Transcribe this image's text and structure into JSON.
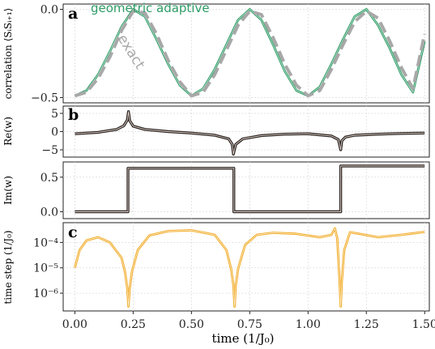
{
  "colors": {
    "green": "#2e9c66",
    "exact": "#a8a8a8",
    "w_line": "#2a2522",
    "orange": "#f2ae2e",
    "grid": "#dcdcdc",
    "axis": "#222222"
  },
  "chart_data": [
    {
      "type": "line",
      "panel_label": "a",
      "ylabel": "correlation ⟨SᵢSᵢ₊₁⟩",
      "ylim": [
        -0.53,
        0.03
      ],
      "yticks": [
        0.0,
        -0.5
      ],
      "ytick_labels": [
        "0.0",
        "−0.5"
      ],
      "xlim": [
        -0.05,
        1.52
      ],
      "grid": true,
      "annotations": [
        {
          "text": "geometric adaptive",
          "color": "#2e9c66"
        },
        {
          "text": "exact",
          "color": "#a8a8a8"
        }
      ],
      "series": [
        {
          "name": "geometric adaptive",
          "style": "solid",
          "color": "#2e9c66",
          "x": [
            0.0,
            0.05,
            0.1,
            0.15,
            0.2,
            0.25,
            0.3,
            0.35,
            0.4,
            0.45,
            0.5,
            0.55,
            0.6,
            0.65,
            0.7,
            0.75,
            0.8,
            0.85,
            0.9,
            0.95,
            1.0,
            1.05,
            1.1,
            1.15,
            1.2,
            1.25,
            1.3,
            1.35,
            1.4,
            1.45,
            1.5
          ],
          "y": [
            -0.49,
            -0.46,
            -0.37,
            -0.24,
            -0.1,
            0.0,
            -0.04,
            -0.17,
            -0.31,
            -0.43,
            -0.49,
            -0.45,
            -0.34,
            -0.2,
            -0.06,
            0.0,
            -0.06,
            -0.2,
            -0.35,
            -0.46,
            -0.49,
            -0.44,
            -0.31,
            -0.17,
            -0.04,
            0.0,
            -0.09,
            -0.22,
            -0.37,
            -0.47,
            -0.18
          ]
        },
        {
          "name": "exact",
          "style": "dashed",
          "color": "#a8a8a8",
          "x": [
            0.0,
            0.05,
            0.1,
            0.15,
            0.2,
            0.25,
            0.3,
            0.35,
            0.4,
            0.45,
            0.5,
            0.55,
            0.6,
            0.65,
            0.7,
            0.75,
            0.8,
            0.85,
            0.9,
            0.95,
            1.0,
            1.05,
            1.1,
            1.15,
            1.2,
            1.25,
            1.3,
            1.35,
            1.4,
            1.45,
            1.5
          ],
          "y": [
            -0.49,
            -0.47,
            -0.39,
            -0.27,
            -0.12,
            -0.01,
            -0.02,
            -0.14,
            -0.29,
            -0.41,
            -0.49,
            -0.47,
            -0.37,
            -0.23,
            -0.09,
            -0.01,
            -0.03,
            -0.16,
            -0.31,
            -0.43,
            -0.49,
            -0.46,
            -0.34,
            -0.2,
            -0.07,
            -0.01,
            -0.05,
            -0.18,
            -0.33,
            -0.45,
            -0.14
          ]
        }
      ]
    },
    {
      "type": "line",
      "panel_label": "b",
      "ylabel": "Re(w)",
      "ylim": [
        -7,
        7
      ],
      "yticks": [
        5,
        0,
        -5
      ],
      "ytick_labels": [
        "5",
        "0",
        "−5"
      ],
      "xlim": [
        -0.05,
        1.52
      ],
      "grid": true,
      "series": [
        {
          "name": "Re(w)",
          "style": "solid",
          "color": "#2a2522",
          "x": [
            0.0,
            0.1,
            0.18,
            0.21,
            0.225,
            0.23,
            0.235,
            0.25,
            0.3,
            0.4,
            0.5,
            0.6,
            0.66,
            0.675,
            0.68,
            0.69,
            0.72,
            0.8,
            0.9,
            1.0,
            1.1,
            1.13,
            1.14,
            1.145,
            1.16,
            1.2,
            1.3,
            1.4,
            1.5
          ],
          "y": [
            -0.6,
            -0.2,
            0.6,
            1.6,
            3.2,
            5.5,
            3.0,
            1.5,
            0.6,
            0.0,
            -0.4,
            -1.0,
            -2.0,
            -3.5,
            -6.2,
            -3.5,
            -2.0,
            -1.1,
            -0.7,
            -0.6,
            -1.2,
            -2.2,
            -5.0,
            -2.5,
            -1.5,
            -1.0,
            -0.7,
            -0.5,
            -0.4
          ]
        }
      ]
    },
    {
      "type": "line",
      "panel_label": "",
      "ylabel": "Im(w)",
      "ylim": [
        -0.1,
        0.72
      ],
      "yticks": [
        0.5,
        0.0
      ],
      "ytick_labels": [
        "0.5",
        "0.0"
      ],
      "xlim": [
        -0.05,
        1.52
      ],
      "grid": true,
      "series": [
        {
          "name": "Im(w)",
          "style": "solid",
          "color": "#2a2522",
          "x": [
            0.0,
            0.228,
            0.228,
            0.682,
            0.682,
            1.14,
            1.14,
            1.5
          ],
          "y": [
            0.0,
            0.0,
            0.6283,
            0.6283,
            0.0,
            0.0,
            0.6615,
            0.6615
          ]
        }
      ]
    },
    {
      "type": "line",
      "panel_label": "c",
      "ylabel": "time step (1/J₀)",
      "xlabel": "time (1/J₀)",
      "yscale": "log",
      "ylim": [
        2e-07,
        0.0006
      ],
      "yticks": [
        0.0001,
        1e-05,
        1e-06
      ],
      "ytick_labels": [
        "10⁻⁴",
        "10⁻⁵",
        "10⁻⁶"
      ],
      "xlim": [
        -0.05,
        1.52
      ],
      "xticks": [
        0.0,
        0.25,
        0.5,
        0.75,
        1.0,
        1.25,
        1.5
      ],
      "xtick_labels": [
        "0.00",
        "0.25",
        "0.50",
        "0.75",
        "1.00",
        "1.25",
        "1.50"
      ],
      "grid": true,
      "series": [
        {
          "name": "time step",
          "style": "solid",
          "color": "#f2ae2e",
          "x": [
            0.0,
            0.02,
            0.05,
            0.1,
            0.15,
            0.2,
            0.215,
            0.225,
            0.23,
            0.235,
            0.245,
            0.27,
            0.32,
            0.4,
            0.5,
            0.6,
            0.65,
            0.67,
            0.68,
            0.685,
            0.69,
            0.7,
            0.73,
            0.78,
            0.85,
            0.95,
            1.05,
            1.1,
            1.115,
            1.125,
            1.135,
            1.14,
            1.145,
            1.155,
            1.18,
            1.22,
            1.3,
            1.4,
            1.5
          ],
          "y": [
            1e-05,
            5e-05,
            0.00012,
            0.00016,
            0.0001,
            2.5e-05,
            7e-06,
            1.5e-06,
            3e-07,
            1.5e-06,
            7e-06,
            5e-05,
            0.00019,
            0.00028,
            0.0003,
            0.0002,
            5e-05,
            9e-06,
            2e-06,
            3e-07,
            2e-06,
            9e-06,
            8e-05,
            0.0002,
            0.00024,
            0.00022,
            0.00016,
            0.0002,
            0.00036,
            0.00015,
            3e-06,
            3e-07,
            3e-06,
            5e-05,
            0.00025,
            0.00022,
            0.00016,
            0.0002,
            0.00026
          ]
        }
      ]
    }
  ]
}
